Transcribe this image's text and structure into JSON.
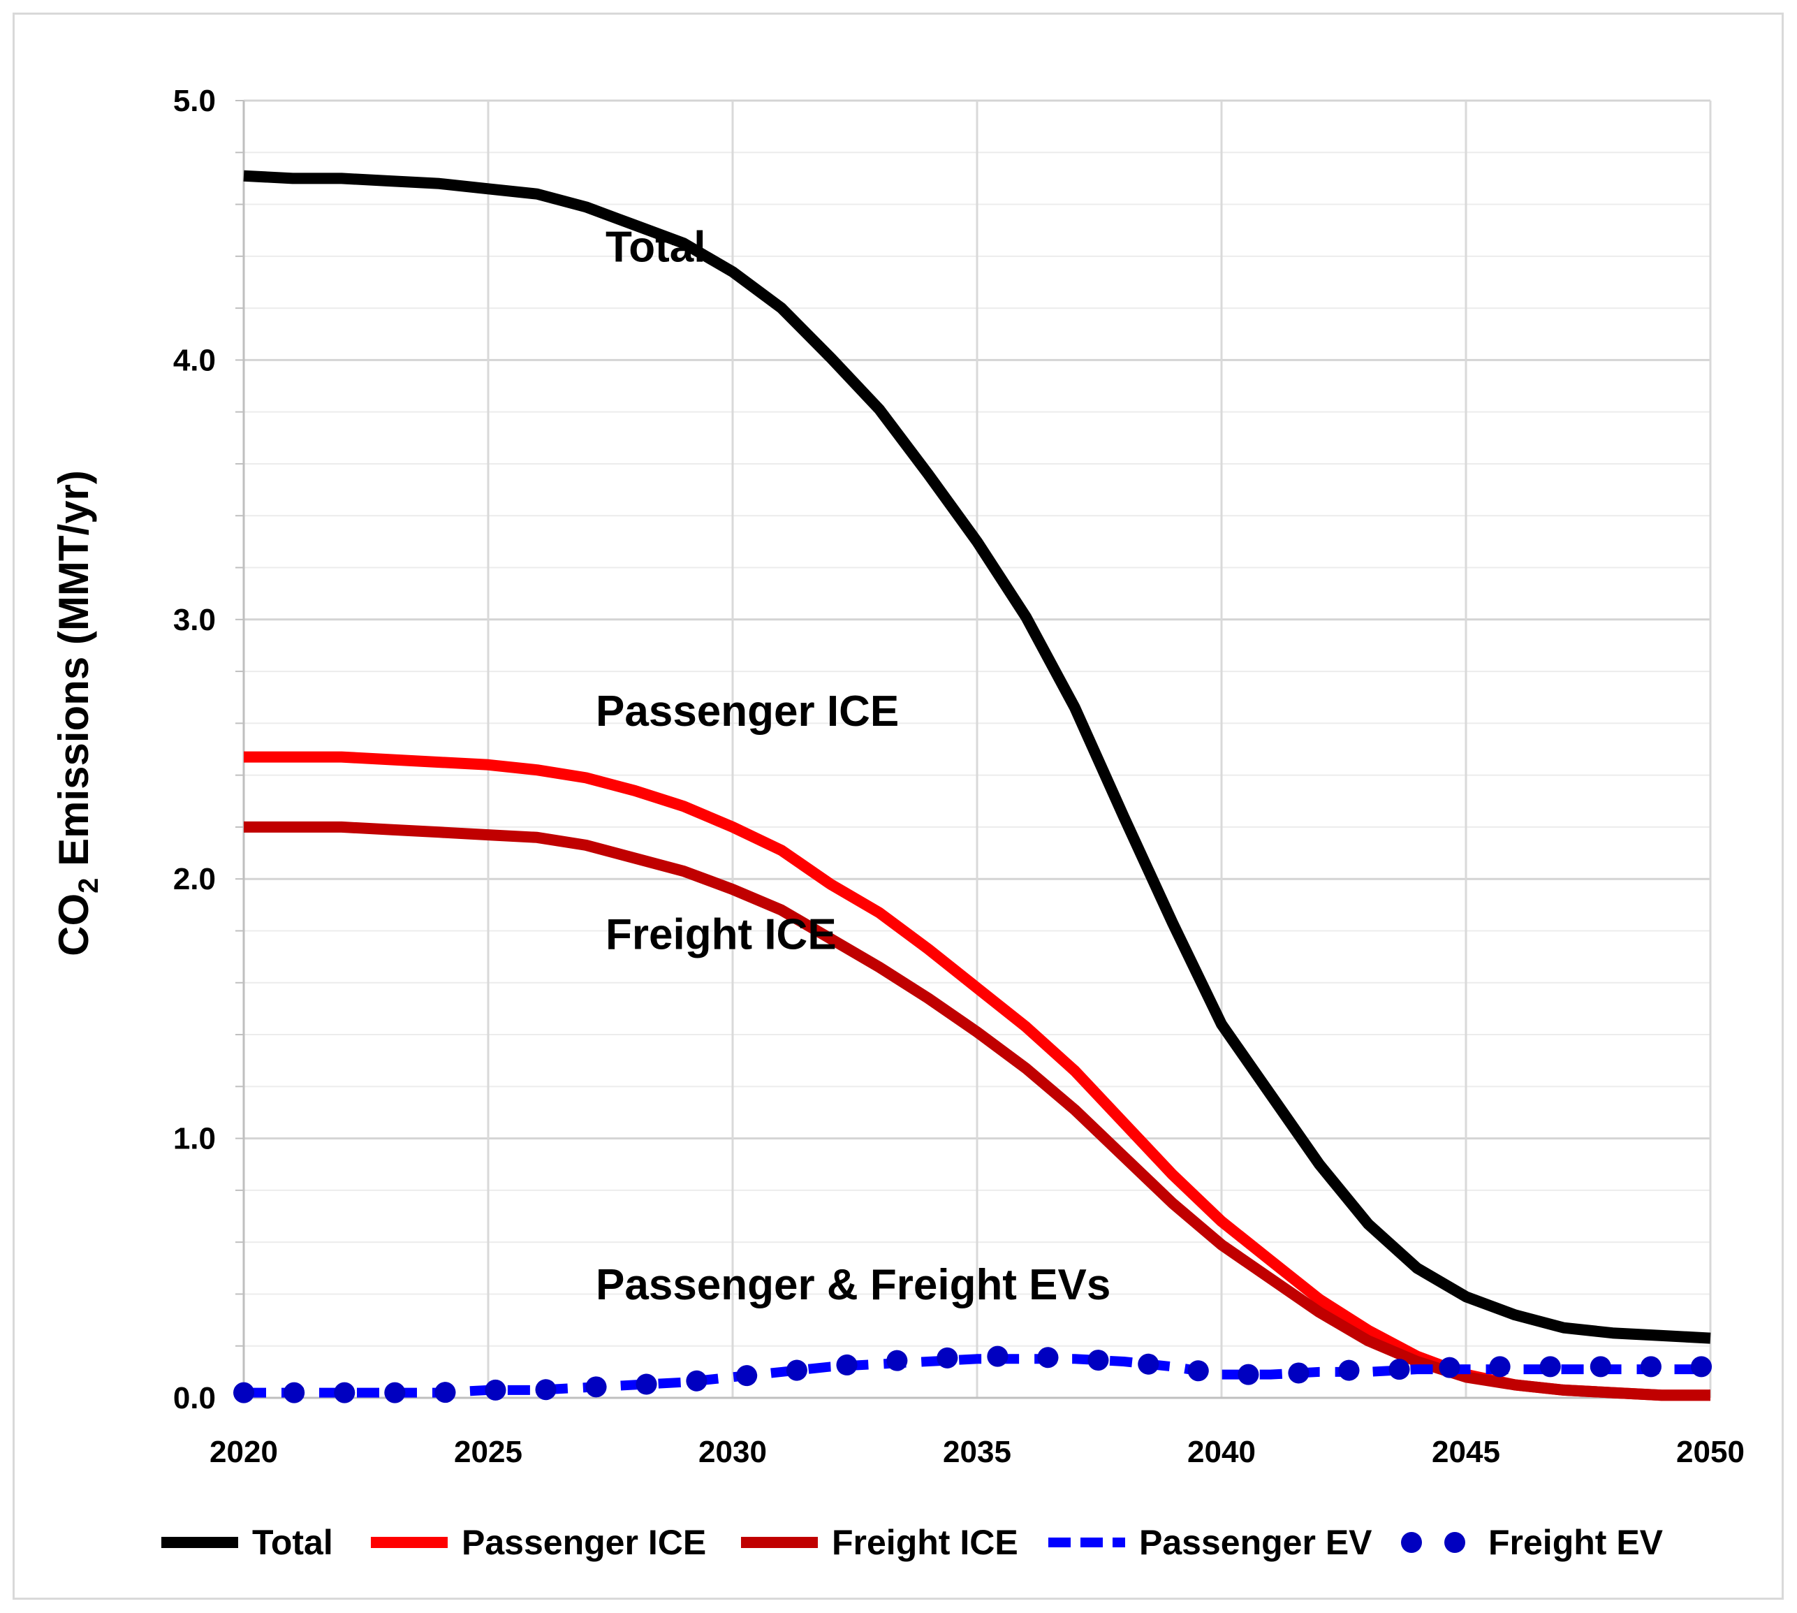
{
  "chart_data": {
    "type": "line",
    "title": "",
    "xlabel": "",
    "ylabel": "CO2 Emissions (MMT/yr)",
    "ylabel_main": "CO",
    "ylabel_sub": "2",
    "ylabel_rest": " Emissions (MMT/yr)",
    "xlim": [
      2020,
      2050
    ],
    "ylim": [
      0,
      5
    ],
    "x_ticks": [
      2020,
      2025,
      2030,
      2035,
      2040,
      2045,
      2050
    ],
    "x_tick_labels": [
      "2020",
      "2025",
      "2030",
      "2035",
      "2040",
      "2045",
      "2050"
    ],
    "y_ticks": [
      0,
      1,
      2,
      3,
      4,
      5
    ],
    "y_tick_labels": [
      "0.0",
      "1.0",
      "2.0",
      "3.0",
      "4.0",
      "5.0"
    ],
    "grid": true,
    "legend_position": "bottom",
    "x": [
      2020,
      2021,
      2022,
      2023,
      2024,
      2025,
      2026,
      2027,
      2028,
      2029,
      2030,
      2031,
      2032,
      2033,
      2034,
      2035,
      2036,
      2037,
      2038,
      2039,
      2040,
      2041,
      2042,
      2043,
      2044,
      2045,
      2046,
      2047,
      2048,
      2049,
      2050
    ],
    "series": [
      {
        "name": "Total",
        "color": "#000000",
        "style": "solid",
        "values": [
          4.71,
          4.7,
          4.7,
          4.69,
          4.68,
          4.66,
          4.64,
          4.59,
          4.52,
          4.45,
          4.34,
          4.2,
          4.01,
          3.81,
          3.56,
          3.3,
          3.01,
          2.66,
          2.24,
          1.83,
          1.44,
          1.17,
          0.9,
          0.67,
          0.5,
          0.39,
          0.32,
          0.27,
          0.25,
          0.24,
          0.23
        ]
      },
      {
        "name": "Passenger ICE",
        "color": "#ff0000",
        "style": "solid",
        "values": [
          2.47,
          2.47,
          2.47,
          2.46,
          2.45,
          2.44,
          2.42,
          2.39,
          2.34,
          2.28,
          2.2,
          2.11,
          1.98,
          1.87,
          1.73,
          1.58,
          1.43,
          1.26,
          1.06,
          0.86,
          0.68,
          0.53,
          0.38,
          0.26,
          0.16,
          0.09,
          0.05,
          0.03,
          0.02,
          0.01,
          0.01
        ]
      },
      {
        "name": "Freight ICE",
        "color": "#c00000",
        "style": "solid",
        "values": [
          2.2,
          2.2,
          2.2,
          2.19,
          2.18,
          2.17,
          2.16,
          2.13,
          2.08,
          2.03,
          1.96,
          1.88,
          1.77,
          1.66,
          1.54,
          1.41,
          1.27,
          1.11,
          0.93,
          0.75,
          0.59,
          0.46,
          0.33,
          0.22,
          0.14,
          0.08,
          0.05,
          0.03,
          0.02,
          0.01,
          0.01
        ]
      },
      {
        "name": "Passenger EV",
        "color": "#0000ff",
        "style": "dashed",
        "values": [
          0.02,
          0.02,
          0.02,
          0.02,
          0.02,
          0.03,
          0.03,
          0.04,
          0.05,
          0.06,
          0.08,
          0.1,
          0.12,
          0.13,
          0.14,
          0.15,
          0.15,
          0.15,
          0.14,
          0.12,
          0.09,
          0.09,
          0.1,
          0.1,
          0.11,
          0.11,
          0.11,
          0.11,
          0.11,
          0.11,
          0.11
        ]
      },
      {
        "name": "Freight EV",
        "color": "#0000c0",
        "style": "dotted",
        "values": [
          0.02,
          0.02,
          0.02,
          0.02,
          0.02,
          0.03,
          0.03,
          0.04,
          0.05,
          0.06,
          0.08,
          0.1,
          0.12,
          0.14,
          0.15,
          0.16,
          0.16,
          0.15,
          0.14,
          0.12,
          0.09,
          0.09,
          0.1,
          0.11,
          0.11,
          0.12,
          0.12,
          0.12,
          0.12,
          0.12,
          0.12
        ]
      }
    ],
    "annotations": [
      {
        "text": "Total",
        "x": 2027.4,
        "y": 4.38
      },
      {
        "text": "Passenger ICE",
        "x": 2027.2,
        "y": 2.59
      },
      {
        "text": "Freight ICE",
        "x": 2027.4,
        "y": 1.73
      },
      {
        "text": "Passenger & Freight EVs",
        "x": 2027.2,
        "y": 0.38
      }
    ]
  }
}
